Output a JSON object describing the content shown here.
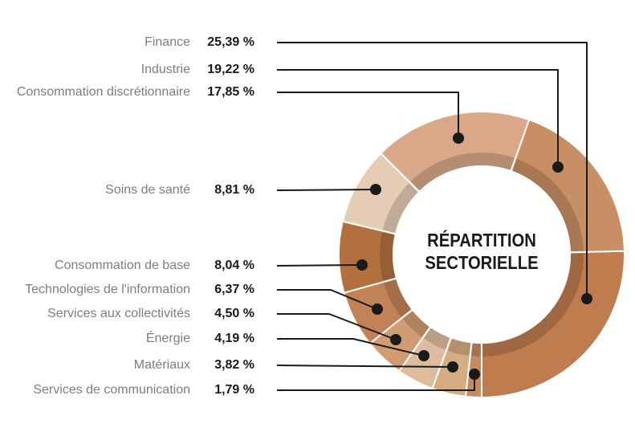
{
  "chart": {
    "center_title": {
      "line1": "RÉPARTITION",
      "line2": "SECTORIELLE"
    }
  },
  "chart_data": {
    "type": "pie",
    "subtype": "donut",
    "title": "RÉPARTITION SECTORIELLE",
    "unit": "%",
    "legend_position": "left",
    "direction": "counterclockwise",
    "start_angle_deg_from_north": 180,
    "categories": [
      "Finance",
      "Industrie",
      "Consommation discrétionnaire",
      "Soins de santé",
      "Consommation de base",
      "Technologies de l'information",
      "Services aux collectivités",
      "Énergie",
      "Matériaux",
      "Services de communication"
    ],
    "values": [
      25.39,
      19.22,
      17.85,
      8.81,
      8.04,
      6.37,
      4.5,
      4.19,
      3.82,
      1.79
    ],
    "display_values": [
      "25,39 %",
      "19,22 %",
      "17,85 %",
      "8,81 %",
      "8,04 %",
      "6,37 %",
      "4,50 %",
      "4,19 %",
      "3,82 %",
      "1,79 %"
    ],
    "colors": [
      "#bf7c4e",
      "#c78f63",
      "#d8a888",
      "#e4ccb5",
      "#b3703f",
      "#c28257",
      "#cf9c74",
      "#ddbca0",
      "#d6ac83",
      "#c48a60"
    ]
  },
  "style_colors": {
    "label_text": "#7d7d7d",
    "value_text": "#1a1a1a",
    "leader_line": "#1a1a1a",
    "dot": "#1a1a1a",
    "background": "#ffffff",
    "center_title_text": "#1a1a1a"
  }
}
